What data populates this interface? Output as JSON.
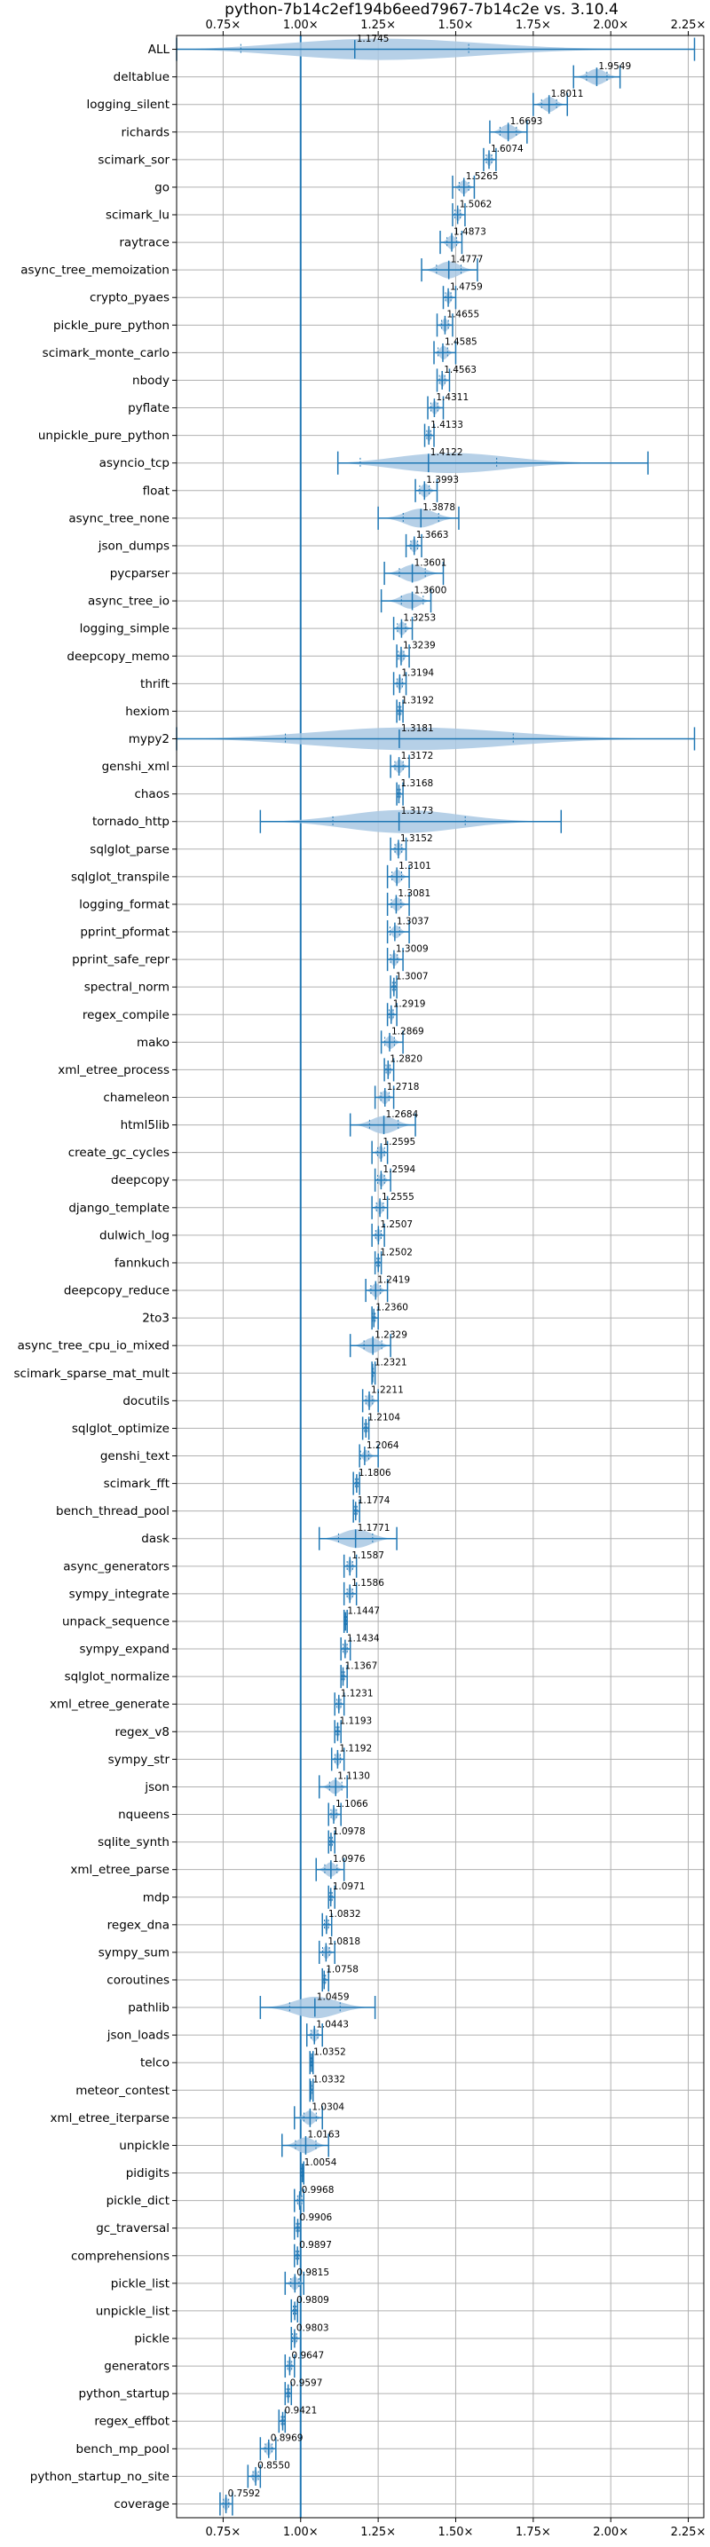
{
  "chart_data": {
    "type": "violin",
    "title": "python-7b14c2ef194b6eed7967-7b14c2e vs. 3.10.4",
    "xlabel": "",
    "ylabel": "",
    "xlim": [
      0.6,
      2.3
    ],
    "xticks": [
      0.75,
      1.0,
      1.25,
      1.5,
      1.75,
      2.0,
      2.25
    ],
    "xtick_labels": [
      "0.75×",
      "1.00×",
      "1.25×",
      "1.50×",
      "1.75×",
      "2.00×",
      "2.25×"
    ],
    "reference_line": 1.0,
    "grid": true,
    "color": "#1f77b4",
    "fill_color": "#a9c8e3",
    "categories": [
      "ALL",
      "deltablue",
      "logging_silent",
      "richards",
      "scimark_sor",
      "go",
      "scimark_lu",
      "raytrace",
      "async_tree_memoization",
      "crypto_pyaes",
      "pickle_pure_python",
      "scimark_monte_carlo",
      "nbody",
      "pyflate",
      "unpickle_pure_python",
      "asyncio_tcp",
      "float",
      "async_tree_none",
      "json_dumps",
      "pycparser",
      "async_tree_io",
      "logging_simple",
      "deepcopy_memo",
      "thrift",
      "hexiom",
      "mypy2",
      "genshi_xml",
      "chaos",
      "tornado_http",
      "sqlglot_parse",
      "sqlglot_transpile",
      "logging_format",
      "pprint_pformat",
      "pprint_safe_repr",
      "spectral_norm",
      "regex_compile",
      "mako",
      "xml_etree_process",
      "chameleon",
      "html5lib",
      "create_gc_cycles",
      "deepcopy",
      "django_template",
      "dulwich_log",
      "fannkuch",
      "deepcopy_reduce",
      "2to3",
      "async_tree_cpu_io_mixed",
      "scimark_sparse_mat_mult",
      "docutils",
      "sqlglot_optimize",
      "genshi_text",
      "scimark_fft",
      "bench_thread_pool",
      "dask",
      "async_generators",
      "sympy_integrate",
      "unpack_sequence",
      "sympy_expand",
      "sqlglot_normalize",
      "xml_etree_generate",
      "regex_v8",
      "sympy_str",
      "json",
      "nqueens",
      "sqlite_synth",
      "xml_etree_parse",
      "mdp",
      "regex_dna",
      "sympy_sum",
      "coroutines",
      "pathlib",
      "json_loads",
      "telco",
      "meteor_contest",
      "xml_etree_iterparse",
      "unpickle",
      "pidigits",
      "pickle_dict",
      "gc_traversal",
      "comprehensions",
      "pickle_list",
      "unpickle_list",
      "pickle",
      "generators",
      "python_startup",
      "regex_effbot",
      "bench_mp_pool",
      "python_startup_no_site",
      "coverage"
    ],
    "medians": [
      1.1745,
      1.9549,
      1.8011,
      1.6693,
      1.6074,
      1.5265,
      1.5062,
      1.4873,
      1.4777,
      1.4759,
      1.4655,
      1.4585,
      1.4563,
      1.4311,
      1.4133,
      1.4122,
      1.3993,
      1.3878,
      1.3663,
      1.3601,
      1.36,
      1.3253,
      1.3239,
      1.3194,
      1.3192,
      1.3181,
      1.3172,
      1.3168,
      1.3173,
      1.3152,
      1.3101,
      1.3081,
      1.3037,
      1.3009,
      1.3007,
      1.2919,
      1.2869,
      1.282,
      1.2718,
      1.2684,
      1.2595,
      1.2594,
      1.2555,
      1.2507,
      1.2502,
      1.2419,
      1.236,
      1.2329,
      1.2321,
      1.2211,
      1.2104,
      1.2064,
      1.1806,
      1.1774,
      1.1771,
      1.1587,
      1.1586,
      1.1447,
      1.1434,
      1.1367,
      1.1231,
      1.1193,
      1.1192,
      1.113,
      1.1066,
      1.0978,
      1.0976,
      1.0971,
      1.0832,
      1.0818,
      1.0758,
      1.0459,
      1.0443,
      1.0352,
      1.0332,
      1.0304,
      1.0163,
      1.0054,
      0.9968,
      0.9906,
      0.9897,
      0.9815,
      0.9809,
      0.9803,
      0.9647,
      0.9597,
      0.9421,
      0.8969,
      0.855,
      0.7592
    ],
    "value_labels": [
      "1.1745",
      "1.9549",
      "1.8011",
      "1.6693",
      "1.6074",
      "1.5265",
      "1.5062",
      "1.4873",
      "1.4777",
      "1.4759",
      "1.4655",
      "1.4585",
      "1.4563",
      "1.4311",
      "1.4133",
      "1.4122",
      "1.3993",
      "1.3878",
      "1.3663",
      "1.3601",
      "1.3600",
      "1.3253",
      "1.3239",
      "1.3194",
      "1.3192",
      "1.3181",
      "1.3172",
      "1.3168",
      "1.3173",
      "1.3152",
      "1.3101",
      "1.3081",
      "1.3037",
      "1.3009",
      "1.3007",
      "1.2919",
      "1.2869",
      "1.2820",
      "1.2718",
      "1.2684",
      "1.2595",
      "1.2594",
      "1.2555",
      "1.2507",
      "1.2502",
      "1.2419",
      "1.2360",
      "1.2329",
      "1.2321",
      "1.2211",
      "1.2104",
      "1.2064",
      "1.1806",
      "1.1774",
      "1.1771",
      "1.1587",
      "1.1586",
      "1.1447",
      "1.1434",
      "1.1367",
      "1.1231",
      "1.1193",
      "1.1192",
      "1.1130",
      "1.1066",
      "1.0978",
      "1.0976",
      "1.0971",
      "1.0832",
      "1.0818",
      "1.0758",
      "1.0459",
      "1.0443",
      "1.0352",
      "1.0332",
      "1.0304",
      "1.0163",
      "1.0054",
      "0.9968",
      "0.9906",
      "0.9897",
      "0.9815",
      "0.9809",
      "0.9803",
      "0.9647",
      "0.9597",
      "0.9421",
      "0.8969",
      "0.8550",
      "0.7592"
    ],
    "mins": [
      0.6,
      1.88,
      1.75,
      1.61,
      1.59,
      1.49,
      1.49,
      1.45,
      1.39,
      1.46,
      1.44,
      1.43,
      1.44,
      1.41,
      1.4,
      1.12,
      1.37,
      1.25,
      1.34,
      1.27,
      1.26,
      1.3,
      1.31,
      1.3,
      1.31,
      0.6,
      1.29,
      1.31,
      0.87,
      1.29,
      1.28,
      1.28,
      1.28,
      1.28,
      1.29,
      1.28,
      1.26,
      1.27,
      1.24,
      1.16,
      1.23,
      1.24,
      1.23,
      1.23,
      1.24,
      1.21,
      1.23,
      1.16,
      1.23,
      1.2,
      1.2,
      1.19,
      1.17,
      1.17,
      1.06,
      1.14,
      1.14,
      1.14,
      1.13,
      1.13,
      1.11,
      1.11,
      1.1,
      1.06,
      1.09,
      1.09,
      1.05,
      1.09,
      1.07,
      1.06,
      1.07,
      0.87,
      1.02,
      1.03,
      1.03,
      0.98,
      0.94,
      1.0,
      0.98,
      0.98,
      0.98,
      0.95,
      0.97,
      0.97,
      0.95,
      0.95,
      0.93,
      0.87,
      0.83,
      0.74
    ],
    "maxs": [
      2.27,
      2.03,
      1.86,
      1.73,
      1.63,
      1.56,
      1.53,
      1.52,
      1.57,
      1.5,
      1.49,
      1.5,
      1.48,
      1.46,
      1.43,
      2.12,
      1.44,
      1.51,
      1.39,
      1.46,
      1.42,
      1.36,
      1.35,
      1.34,
      1.33,
      2.27,
      1.35,
      1.33,
      1.84,
      1.34,
      1.35,
      1.35,
      1.35,
      1.33,
      1.31,
      1.31,
      1.33,
      1.3,
      1.3,
      1.37,
      1.28,
      1.29,
      1.28,
      1.27,
      1.26,
      1.28,
      1.25,
      1.29,
      1.24,
      1.25,
      1.22,
      1.25,
      1.19,
      1.19,
      1.31,
      1.18,
      1.18,
      1.15,
      1.16,
      1.15,
      1.14,
      1.13,
      1.14,
      1.15,
      1.13,
      1.11,
      1.14,
      1.11,
      1.1,
      1.11,
      1.09,
      1.24,
      1.07,
      1.04,
      1.04,
      1.07,
      1.09,
      1.01,
      1.01,
      1.0,
      1.0,
      1.01,
      0.99,
      1.0,
      0.98,
      0.97,
      0.95,
      0.92,
      0.87,
      0.78
    ]
  }
}
